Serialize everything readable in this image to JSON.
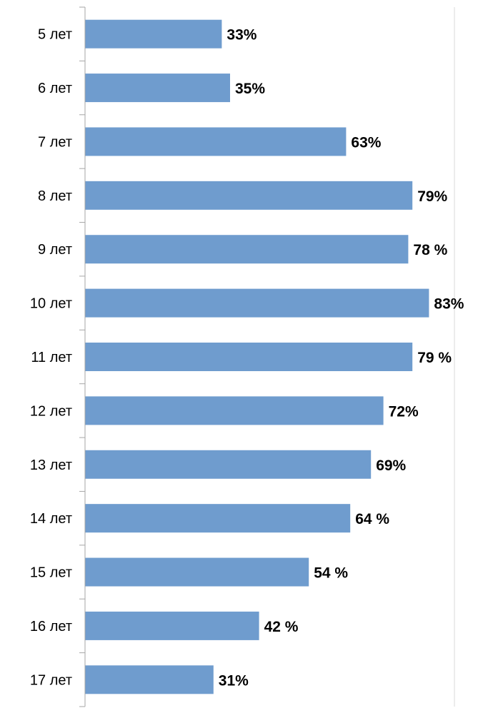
{
  "chart_data": {
    "type": "bar",
    "orientation": "horizontal",
    "categories": [
      "5 лет",
      "6 лет",
      "7 лет",
      "8 лет",
      "9 лет",
      "10 лет",
      "11 лет",
      "12 лет",
      "13 лет",
      "14 лет",
      "15 лет",
      "16 лет",
      "17 лет"
    ],
    "values": [
      33,
      35,
      63,
      79,
      78,
      83,
      79,
      72,
      69,
      64,
      54,
      42,
      31
    ],
    "value_labels": [
      "33%",
      "35%",
      "63%",
      "79%",
      "78 %",
      "83%",
      "79 %",
      "72%",
      "69%",
      "64 %",
      "54 %",
      "42 %",
      "31%"
    ],
    "title": "",
    "xlabel": "",
    "ylabel": "",
    "xlim": [
      0,
      100
    ],
    "grid": false,
    "legend": "none",
    "bar_color": "#6f9cce",
    "axis_color": "#a6a6a6"
  }
}
